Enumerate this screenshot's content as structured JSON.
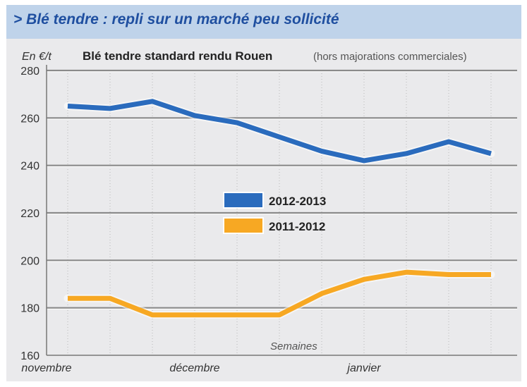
{
  "header": {
    "title": "> Blé tendre : repli sur un marché peu sollicité"
  },
  "colors": {
    "title_bar": "#bfd3ea",
    "title_text": "#1f4fa0",
    "background": "#eaeaec",
    "gridline": "#8a8a8a",
    "series_2012_2013": "#2a6bbd",
    "series_2011_2012": "#f7a823"
  },
  "chart_data": {
    "type": "line",
    "title": "Blé tendre standard rendu Rouen",
    "subtitle": "(hors majorations commerciales)",
    "ylabel": "En €/t",
    "xlabel": "Semaines",
    "ylim": [
      160,
      280
    ],
    "yticks": [
      160,
      180,
      200,
      220,
      240,
      260,
      280
    ],
    "grid": true,
    "legend_position": "center",
    "x_month_labels": [
      "novembre",
      "décembre",
      "janvier"
    ],
    "x_month_label_at_week": [
      0.5,
      4,
      8
    ],
    "x": [
      1,
      2,
      3,
      4,
      5,
      6,
      7,
      8,
      9,
      10,
      11
    ],
    "series": [
      {
        "name": "2012-2013",
        "color": "#2a6bbd",
        "values": [
          265,
          264,
          267,
          261,
          258,
          252,
          246,
          242,
          245,
          250,
          245
        ]
      },
      {
        "name": "2011-2012",
        "color": "#f7a823",
        "values": [
          184,
          184,
          177,
          177,
          177,
          177,
          186,
          192,
          195,
          194,
          194
        ]
      }
    ]
  }
}
